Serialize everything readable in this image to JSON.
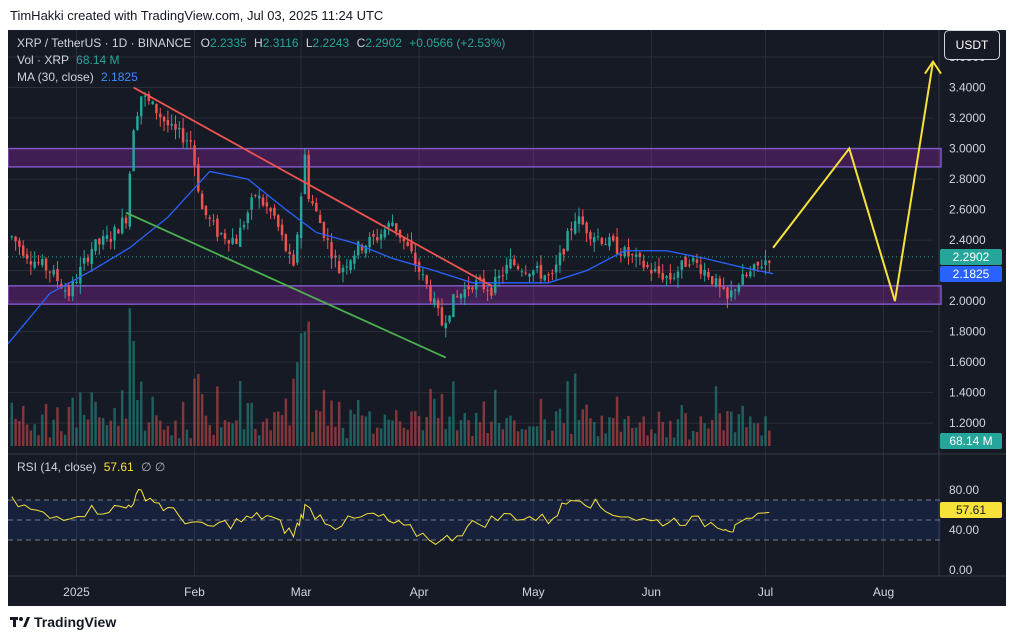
{
  "header": {
    "watermark": "TimHakki created with TradingView.com, Jul 03, 2025 11:24 UTC"
  },
  "legend": {
    "symbol": "XRP / TetherUS · 1D · BINANCE",
    "o_label": "O",
    "o": "2.2335",
    "h_label": "H",
    "h": "2.3116",
    "l_label": "L",
    "l": "2.2243",
    "c_label": "C",
    "c": "2.2902",
    "change": "+0.0566 (+2.53%)",
    "vol_label": "Vol · XRP",
    "vol": "68.14 M",
    "ma_label": "MA (30, close)",
    "ma": "2.1825",
    "rsi_label": "RSI (14, close)",
    "rsi": "57.61",
    "rsi_extra": "∅ ∅"
  },
  "currency_button": "USDT",
  "price_tags": {
    "close": "2.2902",
    "ma": "2.1825",
    "vol": "68.14 M",
    "rsi": "57.61"
  },
  "footer": {
    "brand": "TradingView"
  },
  "colors": {
    "up": "#26a69a",
    "down": "#ef5350",
    "ma": "#2962ff",
    "rsi": "#f7e23a",
    "zone": "#9c27b0",
    "bg": "#161a25",
    "grid": "#2a2e39",
    "text": "#d1d4dc",
    "downtrend": "#ef5350",
    "support_trend": "#4caf50",
    "projection": "#f7e23a"
  },
  "chart_data": [
    {
      "type": "candlestick",
      "title": "XRP / TetherUS · 1D · BINANCE",
      "x_axis_ticks": [
        "2025",
        "Feb",
        "Mar",
        "Apr",
        "May",
        "Jun",
        "Jul",
        "Aug"
      ],
      "x_axis_dates": [
        "2025-01-01",
        "2025-02-01",
        "2025-03-01",
        "2025-04-01",
        "2025-05-01",
        "2025-06-01",
        "2025-07-01",
        "2025-08-01"
      ],
      "x_range": [
        "2024-12-14",
        "2025-08-14"
      ],
      "y_ticks": [
        "3.6000",
        "3.4000",
        "3.2000",
        "3.0000",
        "2.8000",
        "2.6000",
        "2.4000",
        "2.2000",
        "2.0000",
        "1.8000",
        "1.6000",
        "1.4000",
        "1.2000"
      ],
      "ylim": [
        1.05,
        3.62
      ],
      "grid": true,
      "legend_position": "top-left",
      "series": [
        {
          "name": "Close",
          "type": "candle-proxy",
          "dates": [
            "2024-12-15",
            "2024-12-20",
            "2024-12-25",
            "2024-12-30",
            "2025-01-05",
            "2025-01-10",
            "2025-01-14",
            "2025-01-16",
            "2025-01-18",
            "2025-01-22",
            "2025-01-26",
            "2025-01-31",
            "2025-02-03",
            "2025-02-07",
            "2025-02-12",
            "2025-02-17",
            "2025-02-22",
            "2025-02-27",
            "2025-03-02",
            "2025-03-03",
            "2025-03-07",
            "2025-03-11",
            "2025-03-16",
            "2025-03-21",
            "2025-03-25",
            "2025-03-30",
            "2025-04-03",
            "2025-04-07",
            "2025-04-10",
            "2025-04-15",
            "2025-04-20",
            "2025-04-25",
            "2025-05-01",
            "2025-05-06",
            "2025-05-12",
            "2025-05-16",
            "2025-05-21",
            "2025-05-26",
            "2025-06-01",
            "2025-06-06",
            "2025-06-11",
            "2025-06-16",
            "2025-06-21",
            "2025-06-23",
            "2025-06-27",
            "2025-07-02"
          ],
          "values": [
            2.42,
            2.28,
            2.2,
            2.05,
            2.35,
            2.42,
            2.55,
            3.15,
            3.35,
            3.25,
            3.12,
            3.05,
            2.6,
            2.45,
            2.4,
            2.7,
            2.55,
            2.2,
            2.95,
            2.7,
            2.45,
            2.2,
            2.35,
            2.42,
            2.52,
            2.3,
            2.1,
            1.85,
            2.0,
            2.12,
            2.08,
            2.25,
            2.2,
            2.15,
            2.55,
            2.45,
            2.38,
            2.3,
            2.2,
            2.15,
            2.28,
            2.18,
            2.0,
            2.1,
            2.18,
            2.29
          ]
        },
        {
          "name": "MA (30, close)",
          "dates": [
            "2024-12-14",
            "2024-12-25",
            "2025-01-05",
            "2025-01-15",
            "2025-01-25",
            "2025-02-05",
            "2025-02-15",
            "2025-02-25",
            "2025-03-05",
            "2025-03-15",
            "2025-03-25",
            "2025-04-05",
            "2025-04-15",
            "2025-04-25",
            "2025-05-05",
            "2025-05-15",
            "2025-05-25",
            "2025-06-05",
            "2025-06-15",
            "2025-06-25",
            "2025-07-03"
          ],
          "values": [
            1.72,
            2.05,
            2.2,
            2.35,
            2.55,
            2.85,
            2.8,
            2.6,
            2.45,
            2.38,
            2.28,
            2.2,
            2.12,
            2.12,
            2.12,
            2.2,
            2.33,
            2.33,
            2.28,
            2.22,
            2.18
          ]
        }
      ],
      "zones": [
        {
          "from": 2.88,
          "to": 3.0
        },
        {
          "from": 1.98,
          "to": 2.1
        }
      ],
      "trendlines": [
        {
          "name": "downtrend",
          "from": [
            "2025-01-16",
            3.4
          ],
          "to": [
            "2025-04-20",
            2.1
          ]
        },
        {
          "name": "support",
          "from": [
            "2025-01-14",
            2.58
          ],
          "to": [
            "2025-04-08",
            1.63
          ]
        }
      ],
      "projection": {
        "dates": [
          "2025-07-03",
          "2025-07-23",
          "2025-08-04",
          "2025-08-14"
        ],
        "values": [
          2.35,
          3.0,
          2.0,
          3.57
        ]
      }
    },
    {
      "type": "bar",
      "title": "Vol · XRP",
      "ylabel": "",
      "last_value": "68.14 M"
    },
    {
      "type": "line",
      "title": "RSI (14, close)",
      "y_ticks": [
        "80.00",
        "40.00",
        "0.00"
      ],
      "ylim": [
        0,
        100
      ],
      "bands": [
        30,
        50,
        70
      ],
      "series": [
        {
          "name": "RSI",
          "dates": [
            "2024-12-15",
            "2024-12-25",
            "2025-01-05",
            "2025-01-14",
            "2025-01-18",
            "2025-01-25",
            "2025-02-03",
            "2025-02-12",
            "2025-02-20",
            "2025-02-27",
            "2025-03-02",
            "2025-03-10",
            "2025-03-20",
            "2025-03-28",
            "2025-04-07",
            "2025-04-15",
            "2025-04-25",
            "2025-05-05",
            "2025-05-12",
            "2025-05-20",
            "2025-06-01",
            "2025-06-10",
            "2025-06-20",
            "2025-06-23",
            "2025-07-02"
          ],
          "values": [
            68,
            52,
            60,
            62,
            78,
            60,
            42,
            48,
            55,
            35,
            62,
            45,
            55,
            42,
            28,
            45,
            55,
            50,
            75,
            60,
            48,
            50,
            45,
            40,
            57.61
          ]
        }
      ]
    }
  ]
}
